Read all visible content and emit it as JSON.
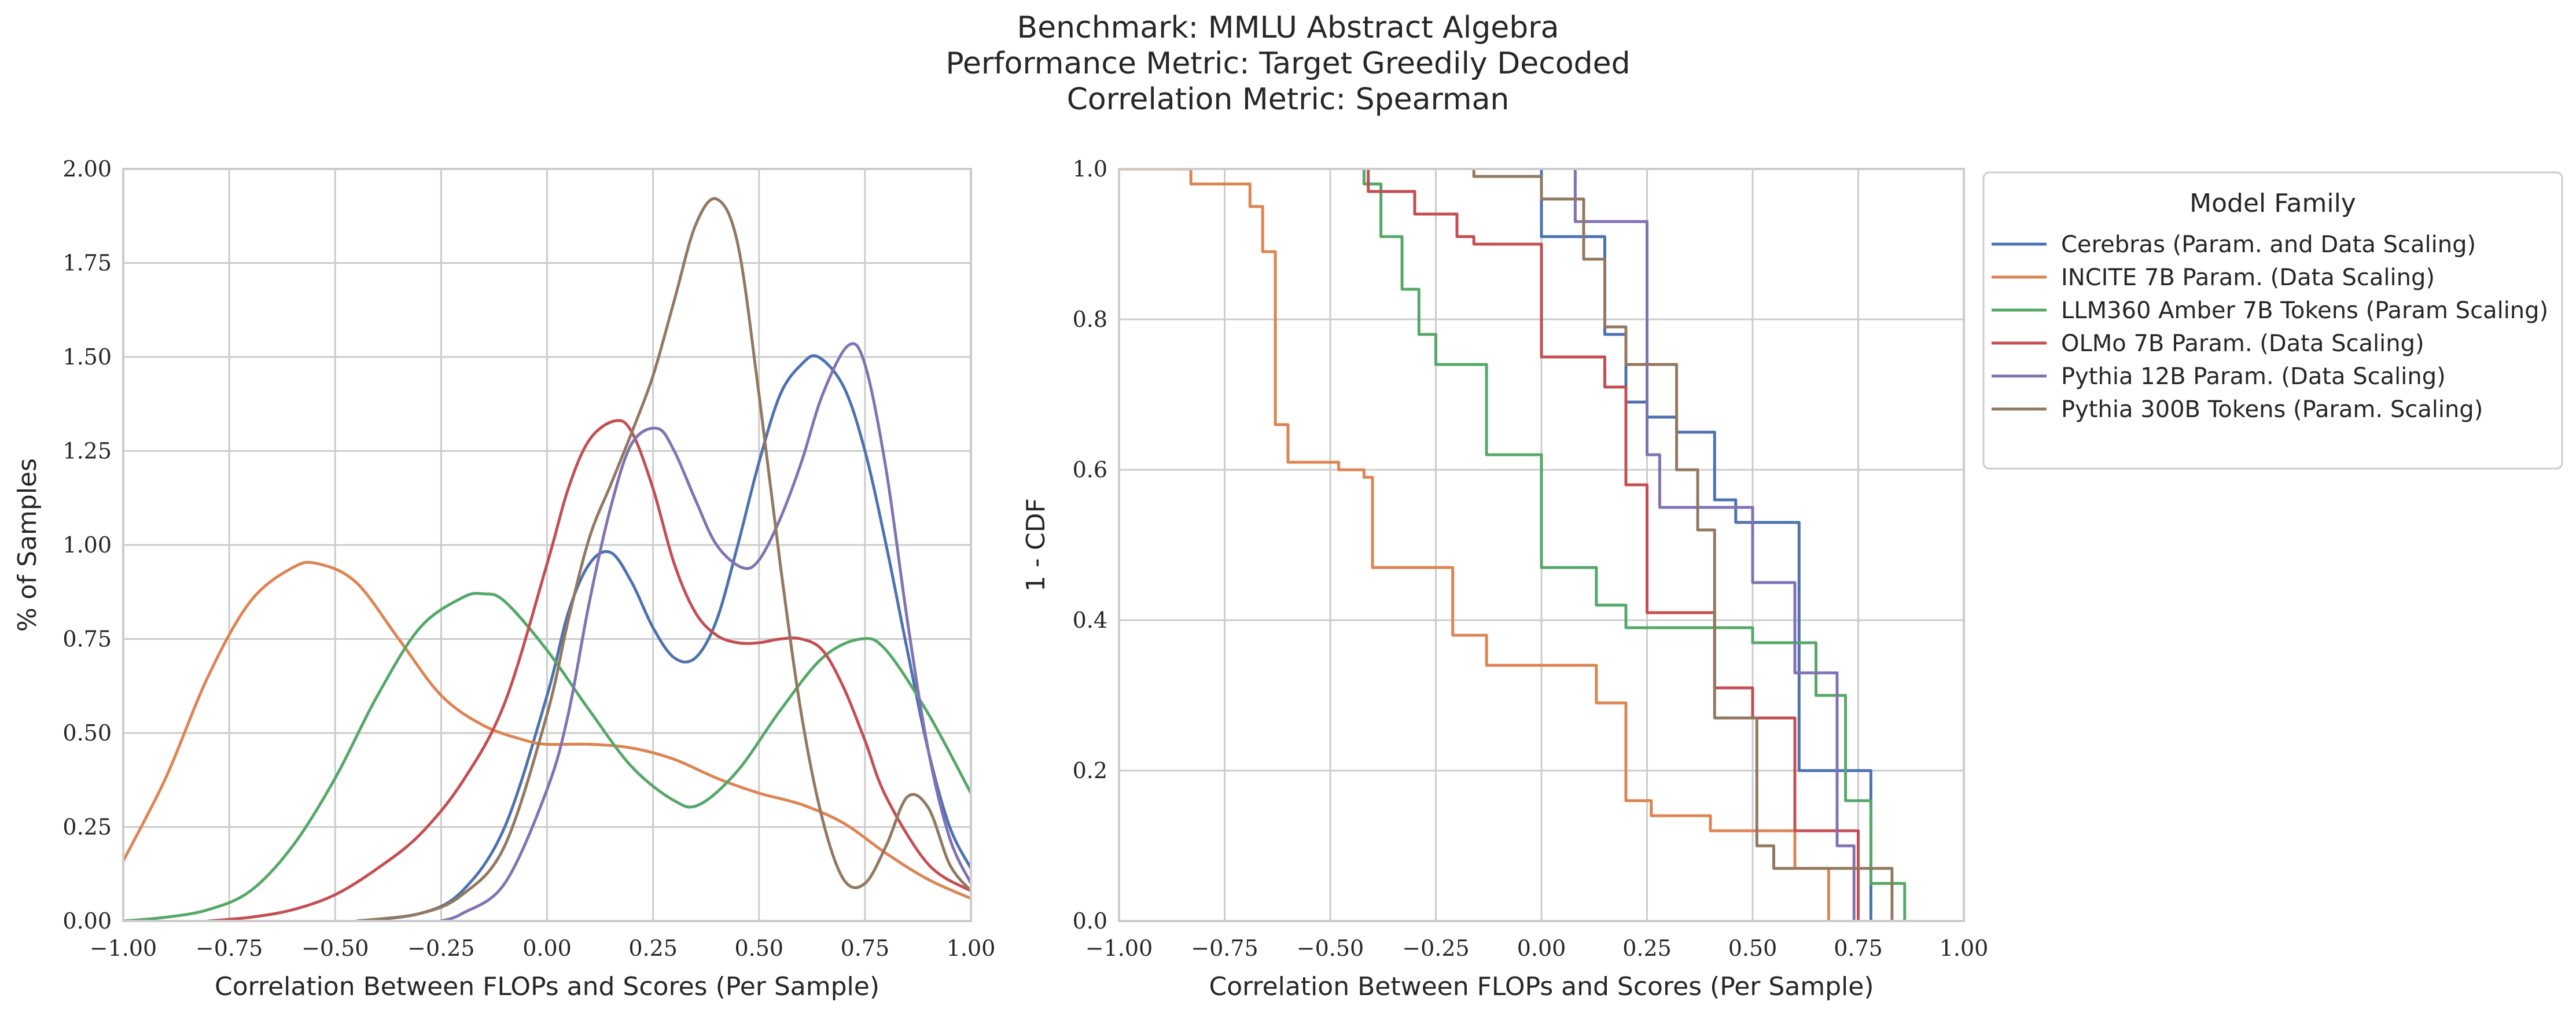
{
  "title_lines": [
    "Benchmark: MMLU Abstract Algebra",
    "Performance Metric: Target Greedily Decoded",
    "Correlation Metric: Spearman"
  ],
  "legend": {
    "title": "Model Family",
    "entries": [
      "Cerebras (Param. and Data Scaling)",
      "INCITE 7B Param. (Data Scaling)",
      "LLM360 Amber 7B Tokens (Param Scaling)",
      "OLMo 7B Param. (Data Scaling)",
      "Pythia 12B Param. (Data Scaling)",
      "Pythia 300B Tokens (Param. Scaling)"
    ]
  },
  "chart_data": [
    {
      "type": "line",
      "panel": "left",
      "xlabel": "Correlation Between FLOPs and Scores (Per Sample)",
      "ylabel": "% of Samples",
      "xlim": [
        -1.0,
        1.0
      ],
      "ylim": [
        0.0,
        2.0
      ],
      "xticks": [
        "−1.00",
        "−0.75",
        "−0.50",
        "−0.25",
        "0.00",
        "0.25",
        "0.50",
        "0.75",
        "1.00"
      ],
      "yticks": [
        "0.00",
        "0.25",
        "0.50",
        "0.75",
        "1.00",
        "1.25",
        "1.50",
        "1.75",
        "2.00"
      ],
      "grid": true,
      "series": [
        {
          "name": "Cerebras (Param. and Data Scaling)",
          "color": "#4c72b0",
          "x": [
            -0.45,
            -0.3,
            -0.2,
            -0.1,
            0.0,
            0.05,
            0.1,
            0.15,
            0.2,
            0.25,
            0.3,
            0.35,
            0.4,
            0.45,
            0.5,
            0.55,
            0.6,
            0.64,
            0.7,
            0.75,
            0.8,
            0.85,
            0.9,
            0.95,
            1.0
          ],
          "y": [
            0.0,
            0.02,
            0.08,
            0.25,
            0.6,
            0.82,
            0.95,
            0.98,
            0.9,
            0.78,
            0.7,
            0.7,
            0.8,
            1.0,
            1.22,
            1.4,
            1.48,
            1.5,
            1.42,
            1.25,
            1.0,
            0.72,
            0.45,
            0.25,
            0.14
          ]
        },
        {
          "name": "INCITE 7B Param. (Data Scaling)",
          "color": "#dd8452",
          "x": [
            -1.0,
            -0.9,
            -0.8,
            -0.7,
            -0.6,
            -0.54,
            -0.45,
            -0.35,
            -0.25,
            -0.15,
            -0.05,
            0.0,
            0.1,
            0.2,
            0.3,
            0.4,
            0.5,
            0.6,
            0.7,
            0.8,
            0.9,
            1.0
          ],
          "y": [
            0.16,
            0.38,
            0.65,
            0.85,
            0.94,
            0.95,
            0.9,
            0.75,
            0.6,
            0.52,
            0.48,
            0.47,
            0.47,
            0.46,
            0.43,
            0.38,
            0.34,
            0.31,
            0.26,
            0.18,
            0.11,
            0.06
          ]
        },
        {
          "name": "LLM360 Amber 7B Tokens (Param Scaling)",
          "color": "#55a868",
          "x": [
            -1.0,
            -0.9,
            -0.8,
            -0.7,
            -0.6,
            -0.5,
            -0.4,
            -0.3,
            -0.2,
            -0.15,
            -0.1,
            0.0,
            0.1,
            0.2,
            0.3,
            0.36,
            0.45,
            0.55,
            0.65,
            0.74,
            0.8,
            0.9,
            1.0
          ],
          "y": [
            0.0,
            0.01,
            0.03,
            0.08,
            0.2,
            0.38,
            0.6,
            0.78,
            0.86,
            0.87,
            0.85,
            0.72,
            0.56,
            0.41,
            0.32,
            0.31,
            0.4,
            0.56,
            0.7,
            0.75,
            0.72,
            0.55,
            0.34
          ]
        },
        {
          "name": "OLMo 7B Param. (Data Scaling)",
          "color": "#c44e52",
          "x": [
            -0.8,
            -0.7,
            -0.6,
            -0.5,
            -0.4,
            -0.3,
            -0.2,
            -0.1,
            0.0,
            0.05,
            0.1,
            0.16,
            0.2,
            0.25,
            0.3,
            0.35,
            0.4,
            0.45,
            0.5,
            0.55,
            0.6,
            0.65,
            0.7,
            0.75,
            0.8,
            0.9,
            1.0
          ],
          "y": [
            0.0,
            0.01,
            0.03,
            0.07,
            0.14,
            0.23,
            0.37,
            0.58,
            0.95,
            1.15,
            1.28,
            1.33,
            1.3,
            1.15,
            0.95,
            0.82,
            0.76,
            0.74,
            0.74,
            0.75,
            0.75,
            0.72,
            0.62,
            0.48,
            0.33,
            0.15,
            0.08
          ]
        },
        {
          "name": "Pythia 12B Param. (Data Scaling)",
          "color": "#8172b3",
          "x": [
            -0.25,
            -0.2,
            -0.1,
            0.0,
            0.05,
            0.1,
            0.15,
            0.2,
            0.26,
            0.3,
            0.35,
            0.4,
            0.46,
            0.5,
            0.55,
            0.6,
            0.65,
            0.71,
            0.75,
            0.8,
            0.85,
            0.9,
            0.95,
            1.0
          ],
          "y": [
            0.0,
            0.02,
            0.1,
            0.35,
            0.55,
            0.85,
            1.1,
            1.27,
            1.31,
            1.25,
            1.12,
            1.0,
            0.94,
            0.96,
            1.07,
            1.22,
            1.4,
            1.53,
            1.48,
            1.2,
            0.8,
            0.45,
            0.22,
            0.1
          ]
        },
        {
          "name": "Pythia 300B Tokens (Param. Scaling)",
          "color": "#937860",
          "x": [
            -0.45,
            -0.3,
            -0.2,
            -0.1,
            0.0,
            0.05,
            0.1,
            0.15,
            0.2,
            0.25,
            0.3,
            0.35,
            0.4,
            0.45,
            0.5,
            0.55,
            0.6,
            0.65,
            0.7,
            0.75,
            0.8,
            0.85,
            0.9,
            0.95,
            1.0
          ],
          "y": [
            0.0,
            0.02,
            0.07,
            0.2,
            0.55,
            0.8,
            1.02,
            1.16,
            1.3,
            1.45,
            1.65,
            1.85,
            1.92,
            1.8,
            1.4,
            0.95,
            0.55,
            0.27,
            0.11,
            0.1,
            0.2,
            0.33,
            0.3,
            0.15,
            0.08
          ]
        }
      ]
    },
    {
      "type": "line",
      "panel": "right",
      "step": true,
      "xlabel": "Correlation Between FLOPs and Scores (Per Sample)",
      "ylabel": "1 - CDF",
      "xlim": [
        -1.0,
        1.0
      ],
      "ylim": [
        0.0,
        1.0
      ],
      "xticks": [
        "−1.00",
        "−0.75",
        "−0.50",
        "−0.25",
        "0.00",
        "0.25",
        "0.50",
        "0.75",
        "1.00"
      ],
      "yticks": [
        "0.0",
        "0.2",
        "0.4",
        "0.6",
        "0.8",
        "1.0"
      ],
      "grid": true,
      "series": [
        {
          "name": "Cerebras (Param. and Data Scaling)",
          "color": "#4c72b0",
          "x": [
            0.0,
            0.0,
            0.15,
            0.15,
            0.2,
            0.2,
            0.25,
            0.25,
            0.32,
            0.32,
            0.41,
            0.41,
            0.46,
            0.46,
            0.61,
            0.61,
            0.72,
            0.72,
            0.78,
            0.78
          ],
          "y": [
            1.0,
            0.91,
            0.91,
            0.78,
            0.78,
            0.69,
            0.69,
            0.67,
            0.67,
            0.65,
            0.65,
            0.56,
            0.56,
            0.53,
            0.53,
            0.2,
            0.2,
            0.2,
            0.2,
            0.0
          ]
        },
        {
          "name": "INCITE 7B Param. (Data Scaling)",
          "color": "#dd8452",
          "x": [
            -1.0,
            -0.83,
            -0.83,
            -0.69,
            -0.69,
            -0.66,
            -0.66,
            -0.63,
            -0.63,
            -0.6,
            -0.6,
            -0.48,
            -0.48,
            -0.42,
            -0.42,
            -0.4,
            -0.4,
            -0.21,
            -0.21,
            -0.13,
            -0.13,
            0.13,
            0.13,
            0.2,
            0.2,
            0.26,
            0.26,
            0.4,
            0.4,
            0.6,
            0.6,
            0.68,
            0.68
          ],
          "y": [
            1.0,
            1.0,
            0.98,
            0.98,
            0.95,
            0.95,
            0.89,
            0.89,
            0.66,
            0.66,
            0.61,
            0.61,
            0.6,
            0.6,
            0.59,
            0.59,
            0.47,
            0.47,
            0.38,
            0.38,
            0.34,
            0.34,
            0.29,
            0.29,
            0.16,
            0.16,
            0.14,
            0.14,
            0.12,
            0.12,
            0.07,
            0.07,
            0.0
          ]
        },
        {
          "name": "LLM360 Amber 7B Tokens (Param Scaling)",
          "color": "#55a868",
          "x": [
            -0.42,
            -0.42,
            -0.38,
            -0.38,
            -0.33,
            -0.33,
            -0.29,
            -0.29,
            -0.25,
            -0.25,
            -0.13,
            -0.13,
            0.0,
            0.0,
            0.13,
            0.13,
            0.2,
            0.2,
            0.5,
            0.5,
            0.65,
            0.65,
            0.72,
            0.72,
            0.78,
            0.78,
            0.86,
            0.86
          ],
          "y": [
            1.0,
            0.98,
            0.98,
            0.91,
            0.91,
            0.84,
            0.84,
            0.78,
            0.78,
            0.74,
            0.74,
            0.62,
            0.62,
            0.47,
            0.47,
            0.42,
            0.42,
            0.39,
            0.39,
            0.37,
            0.37,
            0.3,
            0.3,
            0.16,
            0.16,
            0.05,
            0.05,
            0.0
          ]
        },
        {
          "name": "OLMo 7B Param. (Data Scaling)",
          "color": "#c44e52",
          "x": [
            -0.41,
            -0.41,
            -0.3,
            -0.3,
            -0.2,
            -0.2,
            -0.16,
            -0.16,
            0.0,
            0.0,
            0.15,
            0.15,
            0.2,
            0.2,
            0.25,
            0.25,
            0.41,
            0.41,
            0.5,
            0.5,
            0.6,
            0.6,
            0.75,
            0.75
          ],
          "y": [
            1.0,
            0.97,
            0.97,
            0.94,
            0.94,
            0.91,
            0.91,
            0.9,
            0.9,
            0.75,
            0.75,
            0.71,
            0.71,
            0.58,
            0.58,
            0.41,
            0.41,
            0.31,
            0.31,
            0.27,
            0.27,
            0.12,
            0.12,
            0.0
          ]
        },
        {
          "name": "Pythia 12B Param. (Data Scaling)",
          "color": "#8172b3",
          "x": [
            0.08,
            0.08,
            0.25,
            0.25,
            0.28,
            0.28,
            0.5,
            0.5,
            0.6,
            0.6,
            0.7,
            0.7,
            0.74,
            0.74
          ],
          "y": [
            1.0,
            0.93,
            0.93,
            0.62,
            0.62,
            0.55,
            0.55,
            0.45,
            0.45,
            0.33,
            0.33,
            0.1,
            0.1,
            0.0
          ]
        },
        {
          "name": "Pythia 300B Tokens (Param. Scaling)",
          "color": "#937860",
          "x": [
            -0.16,
            -0.16,
            0.0,
            0.0,
            0.1,
            0.1,
            0.15,
            0.15,
            0.2,
            0.2,
            0.32,
            0.32,
            0.37,
            0.37,
            0.41,
            0.41,
            0.51,
            0.51,
            0.55,
            0.55,
            0.83,
            0.83
          ],
          "y": [
            1.0,
            0.99,
            0.99,
            0.96,
            0.96,
            0.88,
            0.88,
            0.79,
            0.79,
            0.74,
            0.74,
            0.6,
            0.6,
            0.52,
            0.52,
            0.27,
            0.27,
            0.1,
            0.1,
            0.07,
            0.07,
            0.0
          ]
        }
      ]
    }
  ]
}
